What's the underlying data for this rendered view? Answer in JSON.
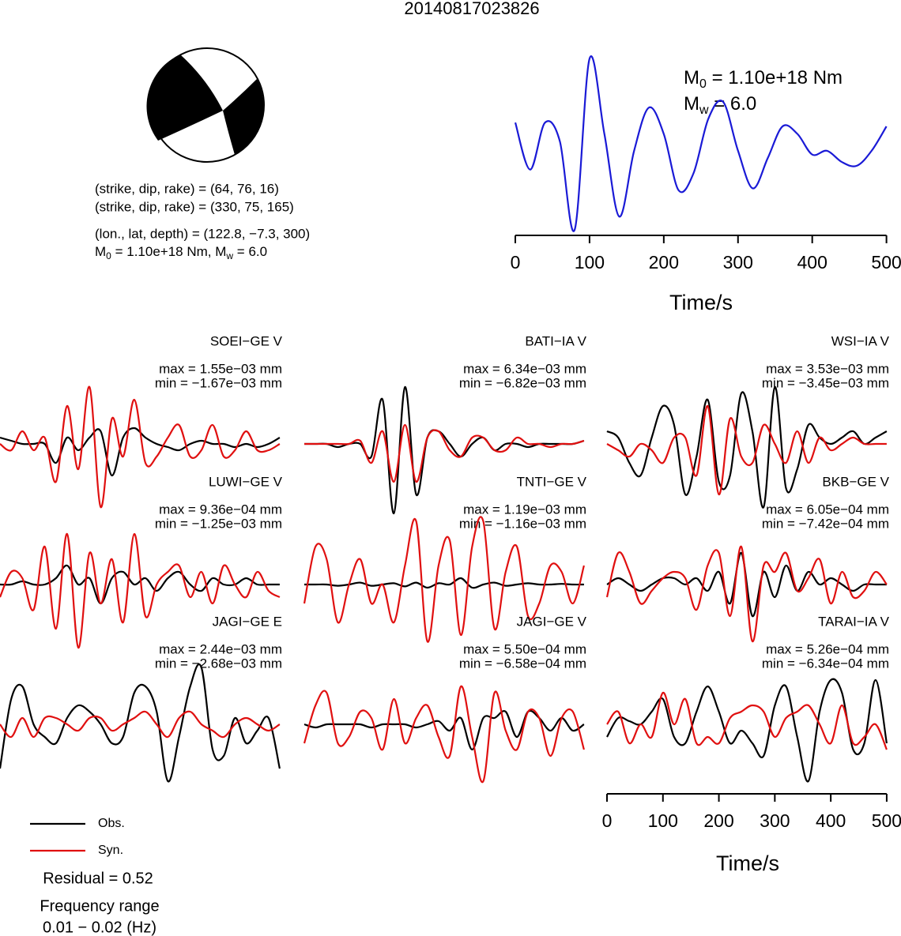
{
  "title": "20140817023826",
  "focal_mechanism": {
    "lines": [
      "(strike, dip, rake) = (64, 76, 16)",
      "(strike, dip, rake) = (330, 75, 165)",
      "(lon., lat, depth) = (122.8, −7.3, 300)"
    ],
    "moment": [
      {
        "sym": "M",
        "sub": "0",
        "text": " = 1.10e+18 Nm, "
      },
      {
        "sym": "M",
        "sub": "w",
        "text": " = 6.0"
      }
    ]
  },
  "chart_data": [
    {
      "type": "line",
      "color": "#1a1ad6",
      "x": [
        0,
        20,
        40,
        60,
        80,
        100,
        120,
        140,
        160,
        180,
        200,
        220,
        240,
        260,
        280,
        300,
        320,
        340,
        360,
        380,
        400,
        420,
        440,
        460,
        480,
        500
      ],
      "values": [
        0.6,
        0.35,
        0.6,
        0.5,
        0.03,
        0.94,
        0.54,
        0.1,
        0.45,
        0.68,
        0.54,
        0.24,
        0.33,
        0.62,
        0.71,
        0.45,
        0.25,
        0.41,
        0.58,
        0.54,
        0.43,
        0.45,
        0.39,
        0.37,
        0.45,
        0.58
      ],
      "xlim": [
        0,
        510
      ],
      "xticks": [
        0,
        100,
        200,
        300,
        400,
        500
      ],
      "xlabel": "Time/s",
      "annotations": [
        {
          "sym": "M",
          "sub": "0",
          "text": " = 1.10e+18 Nm"
        },
        {
          "sym": "M",
          "sub": "w",
          "text": " = 6.0"
        }
      ]
    },
    {
      "type": "waveforms",
      "x": [
        0,
        20,
        40,
        60,
        80,
        100,
        120,
        140,
        160,
        180,
        200,
        220,
        240,
        260,
        280,
        300,
        320,
        340,
        360,
        380,
        400,
        420,
        440,
        460,
        480,
        500
      ],
      "xlim": [
        0,
        510
      ],
      "xticks": [
        0,
        100,
        200,
        300,
        400,
        500
      ],
      "xlabel": "Time/s",
      "series": [
        {
          "name": "Obs.",
          "color": "#000000"
        },
        {
          "name": "Syn.",
          "color": "#e01010"
        }
      ],
      "panels": [
        {
          "label": "SOEI−GE V",
          "max": "max = 1.55e−03 mm",
          "min": "min = −1.67e−03 mm",
          "obs": [
            0.1,
            0.05,
            0,
            0,
            0,
            -0.3,
            0.1,
            -0.1,
            0.1,
            0.2,
            -0.5,
            0.1,
            0.25,
            0.1,
            0,
            -0.05,
            -0.1,
            0,
            0.05,
            0,
            0,
            -0.05,
            0,
            -0.05,
            0,
            0.1
          ],
          "syn": [
            0,
            -0.1,
            0.2,
            -0.1,
            0.1,
            -0.6,
            0.6,
            -0.4,
            0.9,
            -1.0,
            0.4,
            -0.2,
            0.7,
            -0.3,
            -0.2,
            0.1,
            0.3,
            -0.2,
            -0.1,
            0.3,
            -0.2,
            -0.1,
            0.2,
            -0.1,
            -0.1,
            0
          ]
        },
        {
          "label": "BATI−IA V",
          "max": "max = 6.34e−03 mm",
          "min": "min = −6.82e−03 mm",
          "obs": [
            0,
            0,
            0,
            -0.05,
            0,
            0,
            -0.2,
            0.7,
            -1.1,
            0.9,
            -0.8,
            0.1,
            0.2,
            0,
            -0.2,
            0,
            0.1,
            -0.1,
            0,
            0,
            -0.05,
            0,
            0,
            0,
            0,
            0.05
          ],
          "syn": [
            0,
            0,
            0,
            0,
            0,
            0.05,
            -0.3,
            0.2,
            -0.6,
            0.3,
            -0.6,
            0.1,
            0.2,
            -0.1,
            -0.2,
            0.1,
            0.1,
            -0.1,
            -0.1,
            0.1,
            0,
            0,
            -0.05,
            0,
            0,
            0.05
          ]
        },
        {
          "label": "WSI−IA V",
          "max": "max = 3.53e−03 mm",
          "min": "min = −3.45e−03 mm",
          "obs": [
            0.2,
            0.1,
            -0.3,
            -0.5,
            0.1,
            0.6,
            0.3,
            -0.8,
            -0.2,
            0.7,
            -0.6,
            -0.5,
            0.8,
            0.2,
            -1.0,
            0.9,
            -0.7,
            -0.4,
            0.3,
            0.1,
            0,
            0.1,
            0.2,
            0,
            0.1,
            0.2
          ],
          "syn": [
            0,
            -0.1,
            -0.2,
            0,
            -0.1,
            -0.3,
            0.1,
            0.1,
            -0.5,
            0.6,
            -0.8,
            0.4,
            -0.2,
            -0.3,
            0.3,
            0,
            -0.3,
            0.2,
            -0.3,
            0.1,
            -0.1,
            0,
            0.1,
            0,
            0,
            0
          ]
        },
        {
          "label": "LUWI−GE V",
          "max": "max = 9.36e−04 mm",
          "min": "min = −1.25e−03 mm",
          "obs": [
            0,
            0,
            0.05,
            0,
            0,
            0.1,
            0.3,
            0,
            0.1,
            -0.3,
            0.1,
            0.2,
            0,
            0.1,
            -0.1,
            0.1,
            0.2,
            0,
            -0.1,
            0.1,
            0,
            0,
            0.1,
            0,
            0,
            0
          ],
          "syn": [
            -0.2,
            0.2,
            0.1,
            -0.4,
            0.6,
            -0.7,
            0.8,
            -1.0,
            0.5,
            -0.3,
            0.4,
            -0.6,
            0.8,
            -0.5,
            0,
            0.2,
            0.3,
            -0.2,
            0.2,
            -0.3,
            0.3,
            0,
            -0.2,
            0.2,
            -0.1,
            -0.2
          ]
        },
        {
          "label": "TNTI−GE V",
          "max": "max = 1.19e−03 mm",
          "min": "min = −1.16e−03 mm",
          "obs": [
            0,
            0,
            0,
            -0.02,
            0,
            0.03,
            -0.02,
            0,
            0.02,
            -0.03,
            0.03,
            -0.05,
            0.02,
            0,
            0.1,
            -0.05,
            0,
            0.03,
            -0.02,
            0,
            0.02,
            0,
            0,
            0.01,
            0,
            0
          ],
          "syn": [
            -0.3,
            0.6,
            0.4,
            -0.6,
            0,
            0.4,
            -0.3,
            0,
            -0.6,
            0.3,
            1.0,
            -0.9,
            0.3,
            0.7,
            -0.8,
            0.6,
            1.0,
            -0.7,
            0.2,
            0.6,
            -0.5,
            -0.3,
            0.3,
            0.2,
            -0.3,
            0.3
          ]
        },
        {
          "label": "BKB−GE V",
          "max": "max = 6.05e−04 mm",
          "min": "min = −7.42e−04 mm",
          "obs": [
            0,
            0.1,
            0,
            -0.1,
            0,
            0.1,
            0.1,
            0,
            0.1,
            -0.1,
            0.2,
            -0.3,
            0.5,
            -0.5,
            0.2,
            -0.2,
            0.3,
            -0.1,
            0.2,
            0,
            0.1,
            0,
            -0.1,
            0,
            0,
            0
          ],
          "syn": [
            -0.2,
            0.5,
            0.2,
            -0.3,
            -0.1,
            0.1,
            0.2,
            0.1,
            -0.4,
            0.3,
            0.5,
            -0.5,
            0.6,
            -0.9,
            0.3,
            0.2,
            0.5,
            -0.1,
            0.1,
            0.4,
            -0.3,
            0.2,
            -0.2,
            -0.1,
            0.2,
            0
          ]
        },
        {
          "label": "JAGI−GE E",
          "max": "max = 2.44e−03 mm",
          "min": "min = −2.68e−03 mm",
          "obs": [
            -0.7,
            0.4,
            0.6,
            0,
            -0.2,
            -0.3,
            0.1,
            0.3,
            0.2,
            0,
            -0.3,
            -0.2,
            0.5,
            0.6,
            0.2,
            -0.9,
            -0.2,
            0.6,
            0.9,
            -0.4,
            -0.5,
            0.1,
            -0.3,
            -0.1,
            0.1,
            -0.7
          ],
          "syn": [
            0,
            -0.2,
            0.1,
            -0.2,
            0.1,
            0.1,
            0,
            -0.1,
            0.1,
            0.1,
            -0.1,
            0,
            0.1,
            0.2,
            0,
            -0.2,
            0.1,
            0.2,
            0,
            -0.1,
            -0.2,
            0,
            0.1,
            0,
            -0.1,
            0
          ]
        },
        {
          "label": "JAGI−GE V",
          "max": "max = 5.50e−04 mm",
          "min": "min = −6.58e−04 mm",
          "obs": [
            0,
            -0.05,
            0,
            0,
            0,
            0,
            -0.05,
            0,
            0,
            0,
            -0.05,
            0,
            0.05,
            -0.1,
            0.1,
            -0.4,
            0.1,
            0.1,
            0.2,
            -0.2,
            0.2,
            0.1,
            -0.1,
            0.1,
            -0.1,
            0
          ],
          "syn": [
            -0.3,
            0.3,
            0.5,
            -0.3,
            -0.2,
            0.2,
            0.1,
            -0.4,
            0.4,
            -0.3,
            0.1,
            0.3,
            -0.2,
            -0.5,
            0.6,
            -0.2,
            -0.9,
            0.5,
            -0.1,
            -0.4,
            0.2,
            0.1,
            -0.5,
            0.1,
            0.2,
            -0.4
          ]
        },
        {
          "label": "TARAI−IA V",
          "max": "max = 5.26e−04 mm",
          "min": "min = −6.34e−04 mm",
          "obs": [
            -0.2,
            0.1,
            0.05,
            0,
            0.2,
            0.4,
            -0.2,
            -0.3,
            0.2,
            0.6,
            0.2,
            -0.3,
            -0.1,
            -0.3,
            -0.5,
            0.3,
            0.6,
            -0.2,
            -0.9,
            0.2,
            0.7,
            0.5,
            -0.4,
            -0.3,
            0.7,
            -0.3
          ],
          "syn": [
            0,
            0.2,
            -0.3,
            0,
            -0.2,
            0.5,
            0,
            0.4,
            -0.3,
            -0.2,
            -0.3,
            0.1,
            0.2,
            0.3,
            0.2,
            -0.2,
            0.1,
            0.2,
            0.3,
            0,
            -0.3,
            0.3,
            -0.3,
            -0.2,
            0,
            -0.4
          ]
        }
      ],
      "residual": "Residual = 0.52",
      "frequency_range": [
        "Frequency range",
        "0.01 − 0.02 (Hz)"
      ]
    }
  ]
}
